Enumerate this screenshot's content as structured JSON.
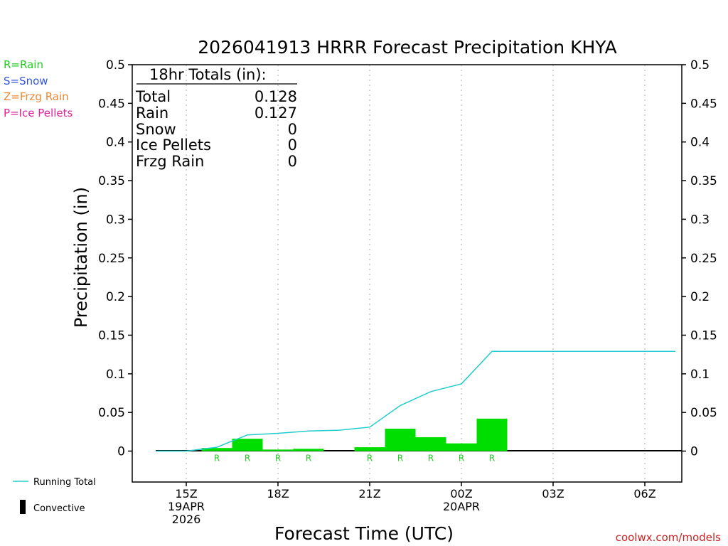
{
  "title": "2026041913 HRRR Forecast Precipitation KHYA",
  "legend_types": [
    {
      "label": "R=Rain",
      "color": "#22cc22"
    },
    {
      "label": "S=Snow",
      "color": "#3355dd"
    },
    {
      "label": "Z=Frzg Rain",
      "color": "#ee8833"
    },
    {
      "label": "P=Ice Pellets",
      "color": "#dd2299"
    }
  ],
  "totals": {
    "header": "18hr Totals (in):",
    "rows": [
      {
        "label": "Total",
        "value": "0.128"
      },
      {
        "label": "Rain",
        "value": "0.127"
      },
      {
        "label": "Snow",
        "value": "0"
      },
      {
        "label": "Ice Pellets",
        "value": "0"
      },
      {
        "label": "Frzg Rain",
        "value": "0"
      }
    ]
  },
  "legend_bottom": {
    "running_total": "Running Total",
    "convective": "Convective"
  },
  "credit": "coolwx.com/models",
  "colors": {
    "rain_bar": "#00dd00",
    "running_total": "#22cccc",
    "axis": "#000000",
    "grid": "#aaaaaa",
    "credit": "#cc2222"
  },
  "chart_data": {
    "type": "bar",
    "ylabel": "Precipitation (in)",
    "xlabel": "Forecast Time (UTC)",
    "ylim": [
      -0.04,
      0.5
    ],
    "yticks": [
      "0.5",
      "0.45",
      "0.4",
      "0.35",
      "0.3",
      "0.25",
      "0.2",
      "0.15",
      "0.1",
      "0.05",
      "0"
    ],
    "ytick_values": [
      0.5,
      0.45,
      0.4,
      0.35,
      0.3,
      0.25,
      0.2,
      0.15,
      0.1,
      0.05,
      0
    ],
    "xlim": [
      13,
      31
    ],
    "xticks": [
      {
        "hour": 15,
        "lines": [
          "15Z",
          "19APR",
          "2026"
        ]
      },
      {
        "hour": 18,
        "lines": [
          "18Z"
        ]
      },
      {
        "hour": 21,
        "lines": [
          "21Z"
        ]
      },
      {
        "hour": 24,
        "lines": [
          "00Z",
          "20APR"
        ]
      },
      {
        "hour": 27,
        "lines": [
          "03Z"
        ]
      },
      {
        "hour": 30,
        "lines": [
          "06Z"
        ]
      }
    ],
    "bars": [
      {
        "hour": 16,
        "value": 0.004,
        "type": "R"
      },
      {
        "hour": 17,
        "value": 0.016,
        "type": "R"
      },
      {
        "hour": 18,
        "value": 0.002,
        "type": "R"
      },
      {
        "hour": 19,
        "value": 0.003,
        "type": "R"
      },
      {
        "hour": 21,
        "value": 0.005,
        "type": "R"
      },
      {
        "hour": 22,
        "value": 0.029,
        "type": "R"
      },
      {
        "hour": 23,
        "value": 0.018,
        "type": "R"
      },
      {
        "hour": 24,
        "value": 0.01,
        "type": "R"
      },
      {
        "hour": 25,
        "value": 0.042,
        "type": "R"
      }
    ],
    "running_total": [
      {
        "hour": 14,
        "value": 0
      },
      {
        "hour": 15,
        "value": 0
      },
      {
        "hour": 16,
        "value": 0.005
      },
      {
        "hour": 17,
        "value": 0.021
      },
      {
        "hour": 18,
        "value": 0.023
      },
      {
        "hour": 19,
        "value": 0.026
      },
      {
        "hour": 20,
        "value": 0.027
      },
      {
        "hour": 21,
        "value": 0.031
      },
      {
        "hour": 22,
        "value": 0.059
      },
      {
        "hour": 23,
        "value": 0.077
      },
      {
        "hour": 24,
        "value": 0.087
      },
      {
        "hour": 25,
        "value": 0.129
      },
      {
        "hour": 31,
        "value": 0.129
      }
    ]
  }
}
